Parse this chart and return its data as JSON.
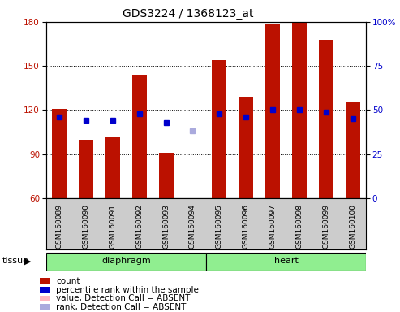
{
  "title": "GDS3224 / 1368123_at",
  "samples": [
    "GSM160089",
    "GSM160090",
    "GSM160091",
    "GSM160092",
    "GSM160093",
    "GSM160094",
    "GSM160095",
    "GSM160096",
    "GSM160097",
    "GSM160098",
    "GSM160099",
    "GSM160100"
  ],
  "tissue_groups": [
    {
      "label": "diaphragm",
      "indices": [
        0,
        1,
        2,
        3,
        4,
        5
      ],
      "color": "#90EE90"
    },
    {
      "label": "heart",
      "indices": [
        6,
        7,
        8,
        9,
        10,
        11
      ],
      "color": "#90EE90"
    }
  ],
  "count_values": [
    121,
    100,
    102,
    144,
    91,
    60,
    154,
    129,
    179,
    180,
    168,
    125
  ],
  "count_absent": [
    false,
    false,
    false,
    false,
    false,
    true,
    false,
    false,
    false,
    false,
    false,
    false
  ],
  "percentile_values": [
    46,
    44,
    44,
    48,
    43,
    38,
    48,
    46,
    50,
    50,
    49,
    45
  ],
  "percentile_absent": [
    false,
    false,
    false,
    false,
    false,
    true,
    false,
    false,
    false,
    false,
    false,
    false
  ],
  "count_color": "#BB1100",
  "count_absent_color": "#FFB6C1",
  "percentile_color": "#0000CC",
  "percentile_absent_color": "#AAAADD",
  "ylim_left": [
    60,
    180
  ],
  "ylim_right": [
    0,
    100
  ],
  "yticks_left": [
    60,
    90,
    120,
    150,
    180
  ],
  "yticks_right": [
    0,
    25,
    50,
    75,
    100
  ],
  "legend_items": [
    {
      "label": "count",
      "color": "#BB1100"
    },
    {
      "label": "percentile rank within the sample",
      "color": "#0000CC"
    },
    {
      "label": "value, Detection Call = ABSENT",
      "color": "#FFB6C1"
    },
    {
      "label": "rank, Detection Call = ABSENT",
      "color": "#AAAADD"
    }
  ]
}
